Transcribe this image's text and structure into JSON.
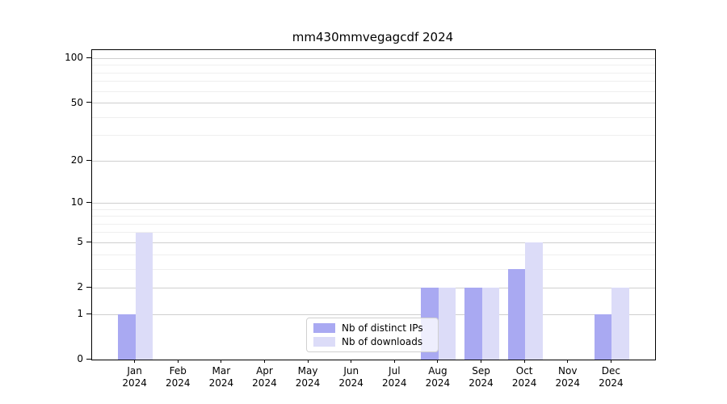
{
  "chart_data": {
    "type": "bar",
    "title": "mm430mmvegagcdf 2024",
    "year_label": "2024",
    "categories": [
      "Jan",
      "Feb",
      "Mar",
      "Apr",
      "May",
      "Jun",
      "Jul",
      "Aug",
      "Sep",
      "Oct",
      "Nov",
      "Dec"
    ],
    "series": [
      {
        "name": "Nb of distinct IPs",
        "color": "#a9a9f2",
        "values": [
          1,
          0,
          0,
          0,
          0,
          0,
          0,
          2,
          2,
          3,
          0,
          1
        ]
      },
      {
        "name": "Nb of downloads",
        "color": "#dcdcf8",
        "values": [
          6,
          0,
          0,
          0,
          0,
          0,
          0,
          2,
          2,
          5,
          0,
          2
        ]
      }
    ],
    "xlabel": "",
    "ylabel": "",
    "yscale": "log1p",
    "ylim": [
      0,
      114
    ],
    "yticks_major": [
      0,
      1,
      2,
      5,
      10,
      20,
      50,
      100
    ],
    "yticks_minor": [
      3,
      4,
      6,
      7,
      8,
      9,
      30,
      40,
      60,
      70,
      80,
      90
    ],
    "grid": "horizontal",
    "legend_position": "lower-center",
    "colors": {
      "major_grid": "#cfcfcf",
      "minor_grid": "#efefef",
      "axis": "#000000",
      "background": "#ffffff"
    }
  }
}
